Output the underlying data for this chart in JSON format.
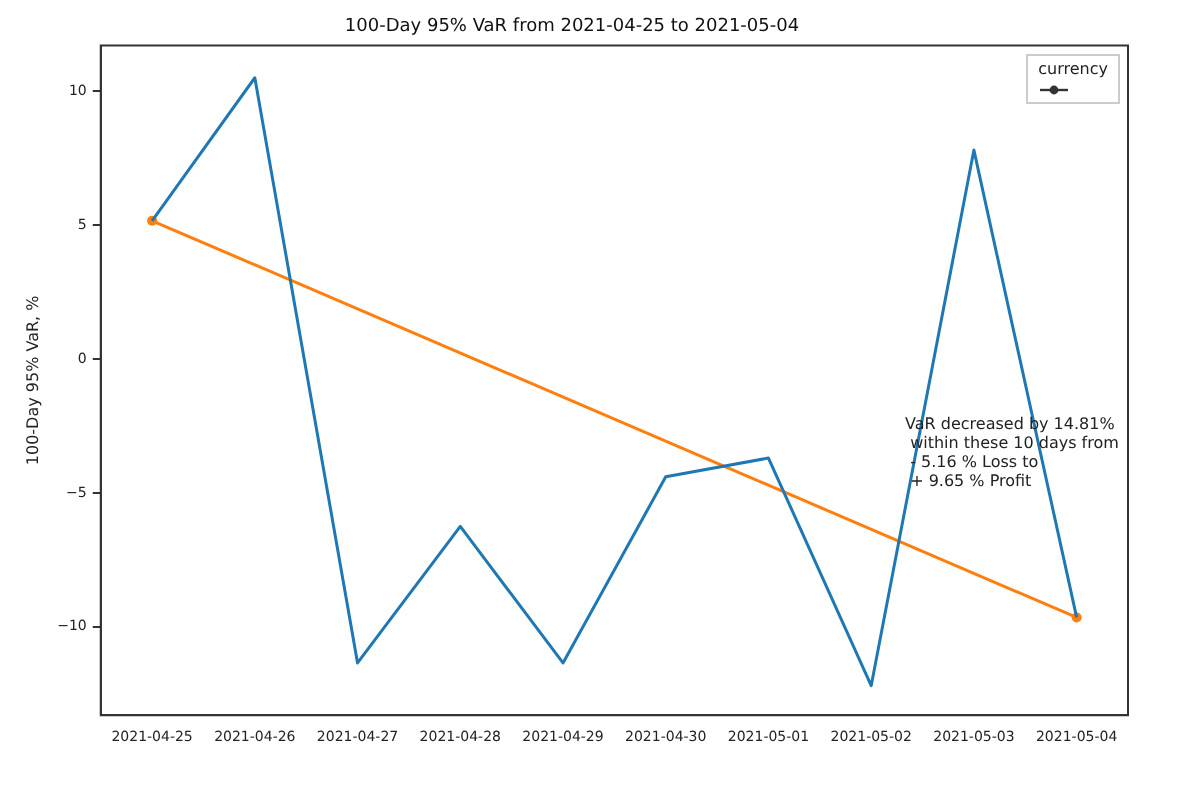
{
  "chart_data": {
    "type": "line",
    "title": "100-Day 95% VaR from 2021-04-25 to 2021-05-04",
    "ylabel": "100-Day 95% VaR, %",
    "legend_title": "currency",
    "grid": false,
    "categories": [
      "2021-04-25",
      "2021-04-26",
      "2021-04-27",
      "2021-04-28",
      "2021-04-29",
      "2021-04-30",
      "2021-05-01",
      "2021-05-02",
      "2021-05-03",
      "2021-05-04"
    ],
    "ylim": [
      -13.3,
      11.7
    ],
    "yticks": [
      -10,
      -5,
      0,
      5,
      10
    ],
    "series": [
      {
        "color": "#1f77b4",
        "marker": "none",
        "values": [
          5.16,
          10.5,
          -11.35,
          -6.25,
          -11.35,
          -4.4,
          -3.7,
          -12.2,
          7.8,
          -9.65
        ]
      },
      {
        "color": "#ff7f0e",
        "marker": "circle",
        "values": [
          5.16,
          null,
          null,
          null,
          null,
          null,
          null,
          null,
          null,
          -9.65
        ]
      }
    ],
    "annotations": [
      "VaR decreased by 14.81%\n within these 10 days from\n - 5.16 % Loss to\n + 9.65 % Profit"
    ]
  }
}
